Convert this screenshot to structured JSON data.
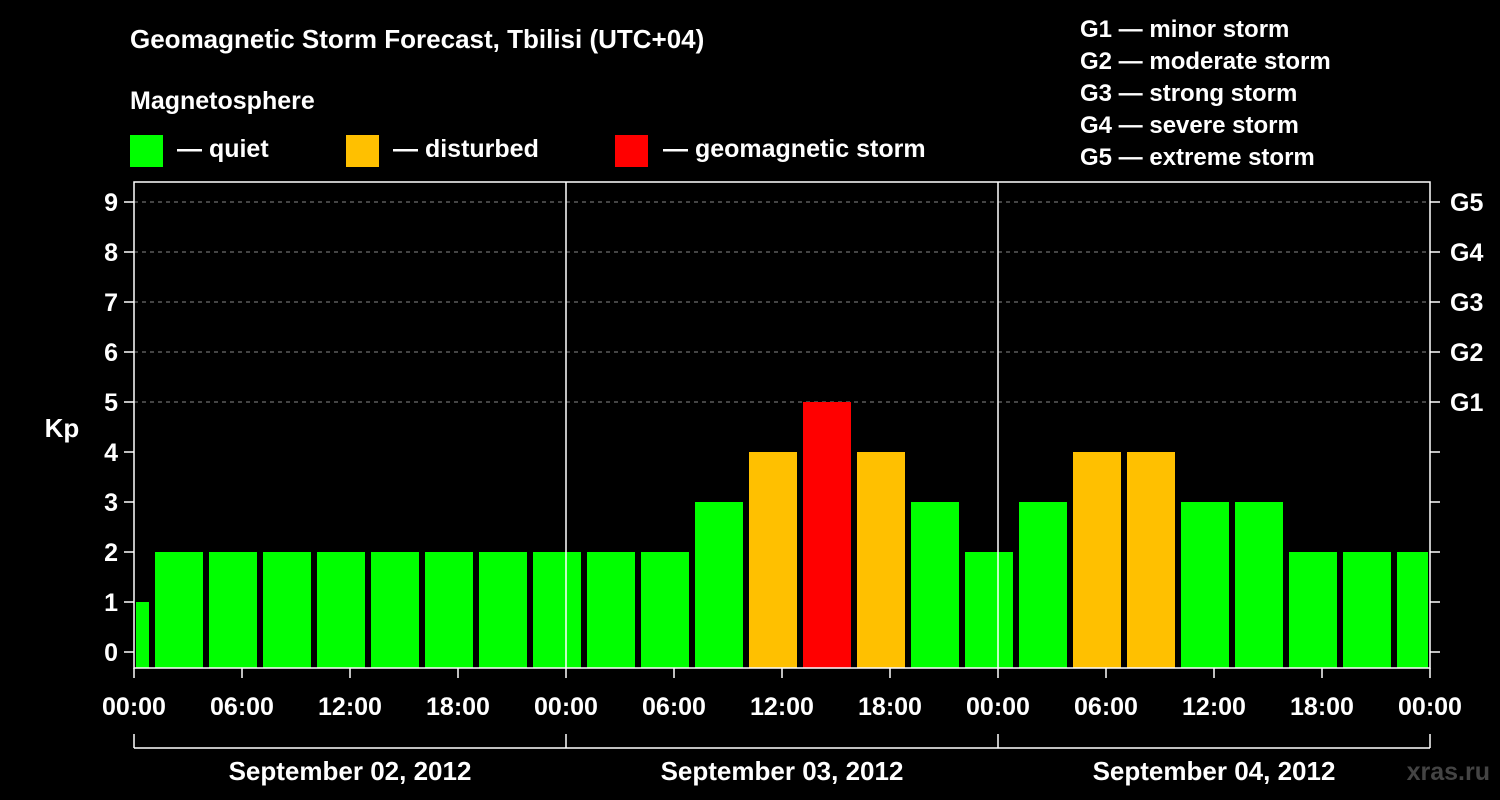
{
  "chart_data": {
    "type": "bar",
    "title": "Geomagnetic Storm Forecast, Tbilisi (UTC+04)",
    "legend_title": "Magnetosphere",
    "legend": [
      {
        "label": "— quiet",
        "color": "#00ff00"
      },
      {
        "label": "— disturbed",
        "color": "#ffc000"
      },
      {
        "label": "— geomagnetic storm",
        "color": "#ff0000"
      }
    ],
    "storm_levels": [
      "G1 — minor storm",
      "G2 — moderate storm",
      "G3 — strong storm",
      "G4 — severe storm",
      "G5 — extreme storm"
    ],
    "ylabel": "Kp",
    "ylim": [
      0,
      9
    ],
    "y_ticks": [
      "0",
      "1",
      "2",
      "3",
      "4",
      "5",
      "6",
      "7",
      "8",
      "9"
    ],
    "g_ticks": [
      {
        "kp": 5,
        "label": "G1"
      },
      {
        "kp": 6,
        "label": "G2"
      },
      {
        "kp": 7,
        "label": "G3"
      },
      {
        "kp": 8,
        "label": "G4"
      },
      {
        "kp": 9,
        "label": "G5"
      }
    ],
    "grid": true,
    "x_range_hours": [
      0,
      72
    ],
    "x_tick_labels": [
      "00:00",
      "06:00",
      "12:00",
      "18:00",
      "00:00",
      "06:00",
      "12:00",
      "18:00",
      "00:00",
      "06:00",
      "12:00",
      "18:00",
      "00:00"
    ],
    "days": [
      "September 02, 2012",
      "September 03, 2012",
      "September 04, 2012"
    ],
    "bars": [
      {
        "start": 0,
        "end": 1,
        "kp": 1
      },
      {
        "start": 1,
        "end": 4,
        "kp": 2
      },
      {
        "start": 4,
        "end": 7,
        "kp": 2
      },
      {
        "start": 7,
        "end": 10,
        "kp": 2
      },
      {
        "start": 10,
        "end": 13,
        "kp": 2
      },
      {
        "start": 13,
        "end": 16,
        "kp": 2
      },
      {
        "start": 16,
        "end": 19,
        "kp": 2
      },
      {
        "start": 19,
        "end": 22,
        "kp": 2
      },
      {
        "start": 22,
        "end": 25,
        "kp": 2
      },
      {
        "start": 25,
        "end": 28,
        "kp": 2
      },
      {
        "start": 28,
        "end": 31,
        "kp": 2
      },
      {
        "start": 31,
        "end": 34,
        "kp": 3
      },
      {
        "start": 34,
        "end": 37,
        "kp": 4
      },
      {
        "start": 37,
        "end": 40,
        "kp": 5
      },
      {
        "start": 40,
        "end": 43,
        "kp": 4
      },
      {
        "start": 43,
        "end": 46,
        "kp": 3
      },
      {
        "start": 46,
        "end": 49,
        "kp": 2
      },
      {
        "start": 49,
        "end": 52,
        "kp": 3
      },
      {
        "start": 52,
        "end": 55,
        "kp": 4
      },
      {
        "start": 55,
        "end": 58,
        "kp": 4
      },
      {
        "start": 58,
        "end": 61,
        "kp": 3
      },
      {
        "start": 61,
        "end": 64,
        "kp": 3
      },
      {
        "start": 64,
        "end": 67,
        "kp": 2
      },
      {
        "start": 67,
        "end": 70,
        "kp": 2
      },
      {
        "start": 70,
        "end": 72,
        "kp": 2
      }
    ],
    "watermark": "xras.ru"
  }
}
